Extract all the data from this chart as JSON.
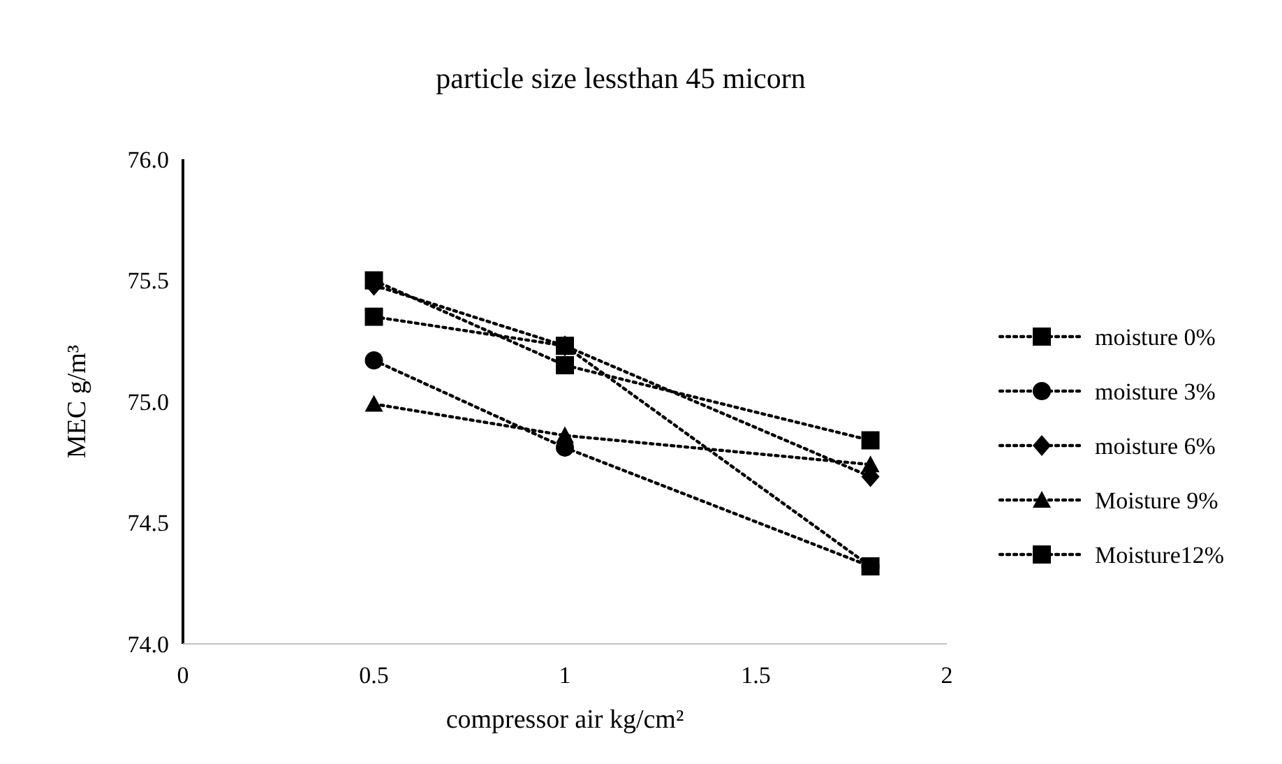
{
  "chart_data": {
    "type": "line",
    "title": "particle size lessthan 45 micorn",
    "xlabel": "compressor air kg/cm²",
    "ylabel": "MEC g/m³",
    "x": [
      0.5,
      1,
      1.8
    ],
    "xlim": [
      0,
      2
    ],
    "xticks": [
      0,
      0.5,
      1,
      1.5,
      2
    ],
    "ylim": [
      74,
      76
    ],
    "yticks": [
      {
        "value": 74,
        "label": "74.0"
      },
      {
        "value": 74.5,
        "label": "74.5"
      },
      {
        "value": 75,
        "label": "75.0"
      },
      {
        "value": 75.5,
        "label": "75.5"
      },
      {
        "value": 76,
        "label": "76.0"
      }
    ],
    "grid": false,
    "legend": "right",
    "line_style": "dotted",
    "series": [
      {
        "name": "moisture 0%",
        "color": "#000000",
        "marker": "square",
        "values": [
          75.5,
          75.15,
          74.84
        ]
      },
      {
        "name": "moisture 3%",
        "color": "#000000",
        "marker": "circle",
        "values": [
          75.17,
          74.81,
          74.32
        ]
      },
      {
        "name": "moisture 6%",
        "color": "#000000",
        "marker": "diamond",
        "values": [
          75.48,
          75.23,
          74.69
        ]
      },
      {
        "name": "Moisture 9%",
        "color": "#000000",
        "marker": "triangle",
        "values": [
          74.99,
          74.86,
          74.74
        ]
      },
      {
        "name": "Moisture12%",
        "color": "#000000",
        "marker": "square",
        "values": [
          75.35,
          75.23,
          74.32
        ]
      }
    ]
  }
}
